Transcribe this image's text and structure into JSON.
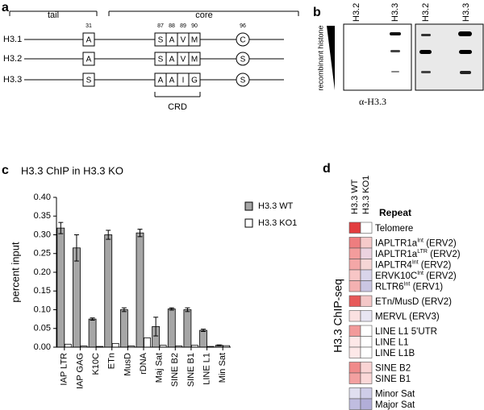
{
  "panel_labels": [
    "a",
    "b",
    "c",
    "d"
  ],
  "diagram": {
    "tail": "tail",
    "core": "core",
    "positions": [
      "31",
      "87",
      "88",
      "89",
      "90",
      "96"
    ],
    "rows": [
      {
        "name": "H3.1",
        "residues": [
          "A",
          "S",
          "A",
          "V",
          "M",
          "C"
        ]
      },
      {
        "name": "H3.2",
        "residues": [
          "A",
          "S",
          "A",
          "V",
          "M",
          "S"
        ]
      },
      {
        "name": "H3.3",
        "residues": [
          "S",
          "A",
          "A",
          "I",
          "G",
          "S"
        ]
      }
    ],
    "crd": "CRD"
  },
  "blot": {
    "lanes": [
      "H3.2",
      "H3.3",
      "H3.2",
      "H3.3"
    ],
    "side_label": "recombinant histone",
    "antibody": "α-H3.3"
  },
  "chart_data": {
    "type": "bar",
    "title": "H3.3 ChIP in H3.3 KO",
    "y_label": "percent input",
    "categories": [
      "IAP LTR",
      "IAP GAG",
      "K10C",
      "ETn",
      "MusD",
      "rDNA",
      "Maj Sat",
      "SINE B2",
      "SINE B1",
      "LINE L1",
      "Min Sat"
    ],
    "series": [
      {
        "name": "H3.3 WT",
        "color": "#a6a6a6",
        "values": [
          0.318,
          0.265,
          0.075,
          0.3,
          0.1,
          0.305,
          0.055,
          0.102,
          0.1,
          0.045,
          0.005
        ],
        "errors": [
          0.015,
          0.035,
          0.003,
          0.012,
          0.005,
          0.01,
          0.025,
          0.003,
          0.005,
          0.003,
          0.001
        ]
      },
      {
        "name": "H3.3 KO1",
        "color": "#ffffff",
        "values": [
          0.008,
          0.003,
          0.002,
          0.01,
          0.003,
          0.025,
          0.005,
          0.003,
          0.005,
          0.002,
          0.004
        ]
      }
    ],
    "ylim": [
      0,
      0.4
    ],
    "yticks": [
      {
        "value": 0,
        "label": "0.00"
      },
      {
        "value": 0.05,
        "label": "0.05"
      },
      {
        "value": 0.1,
        "label": "0.10"
      },
      {
        "value": 0.15,
        "label": "0.15"
      },
      {
        "value": 0.2,
        "label": "0.20"
      },
      {
        "value": 0.25,
        "label": "0.25"
      },
      {
        "value": 0.3,
        "label": "0.30"
      },
      {
        "value": 0.35,
        "label": "0.35"
      },
      {
        "value": 0.4,
        "label": "0.40"
      }
    ],
    "legend": "upper right"
  },
  "heatmap": {
    "columns": [
      "H3.3 WT",
      "H3.3 KO1"
    ],
    "header": "Repeat",
    "side_label": "H3.3 ChIP-seq",
    "groups": [
      [
        {
          "label": "Telomere",
          "colors": [
            "#e23d3f",
            "#ffffff"
          ]
        }
      ],
      [
        {
          "label": "IAPLTR1a",
          "sup": "Int",
          "suffix": " (ERV2)",
          "colors": [
            "#ee7d7f",
            "#f6caca"
          ]
        },
        {
          "label": "IAPLTR1a",
          "sup": "LTR",
          "suffix": " (ERV2)",
          "colors": [
            "#f39c9c",
            "#ecd3e0"
          ]
        },
        {
          "label": "IAPLTR4",
          "sup": "Int",
          "suffix": " (ERV2)",
          "colors": [
            "#f4a7a7",
            "#f6d6d6"
          ]
        },
        {
          "label": "ERVK10C",
          "sup": "Int",
          "suffix": " (ERV2)",
          "colors": [
            "#f8c6c6",
            "#d9d5eb"
          ]
        },
        {
          "label": "RLTR6",
          "sup": "Int",
          "suffix": " (ERV1)",
          "colors": [
            "#f4b1b1",
            "#cac6e2"
          ]
        }
      ],
      [
        {
          "label": "ETn/MusD (ERV2)",
          "colors": [
            "#e75959",
            "#f4c7c7"
          ]
        }
      ],
      [
        {
          "label": "MERVL (ERV3)",
          "colors": [
            "#fbe1e1",
            "#e8e6f3"
          ]
        }
      ],
      [
        {
          "label": "LINE L1 5'UTR",
          "colors": [
            "#f29a9a",
            "#ffffff"
          ]
        },
        {
          "label": "LINE L1",
          "colors": [
            "#fde8e8",
            "#ffffff"
          ]
        },
        {
          "label": "LINE L1B",
          "colors": [
            "#fde8e8",
            "#ffffff"
          ]
        }
      ],
      [
        {
          "label": "SINE B2",
          "colors": [
            "#f08a8a",
            "#fad4d4"
          ]
        },
        {
          "label": "SINE B1",
          "colors": [
            "#f3a0a0",
            "#fbd8d8"
          ]
        }
      ],
      [
        {
          "label": "Minor Sat",
          "colors": [
            "#e0dff0",
            "#cfcde8"
          ]
        },
        {
          "label": "Major Sat",
          "colors": [
            "#c0bde0",
            "#b2aed8"
          ]
        }
      ]
    ]
  }
}
